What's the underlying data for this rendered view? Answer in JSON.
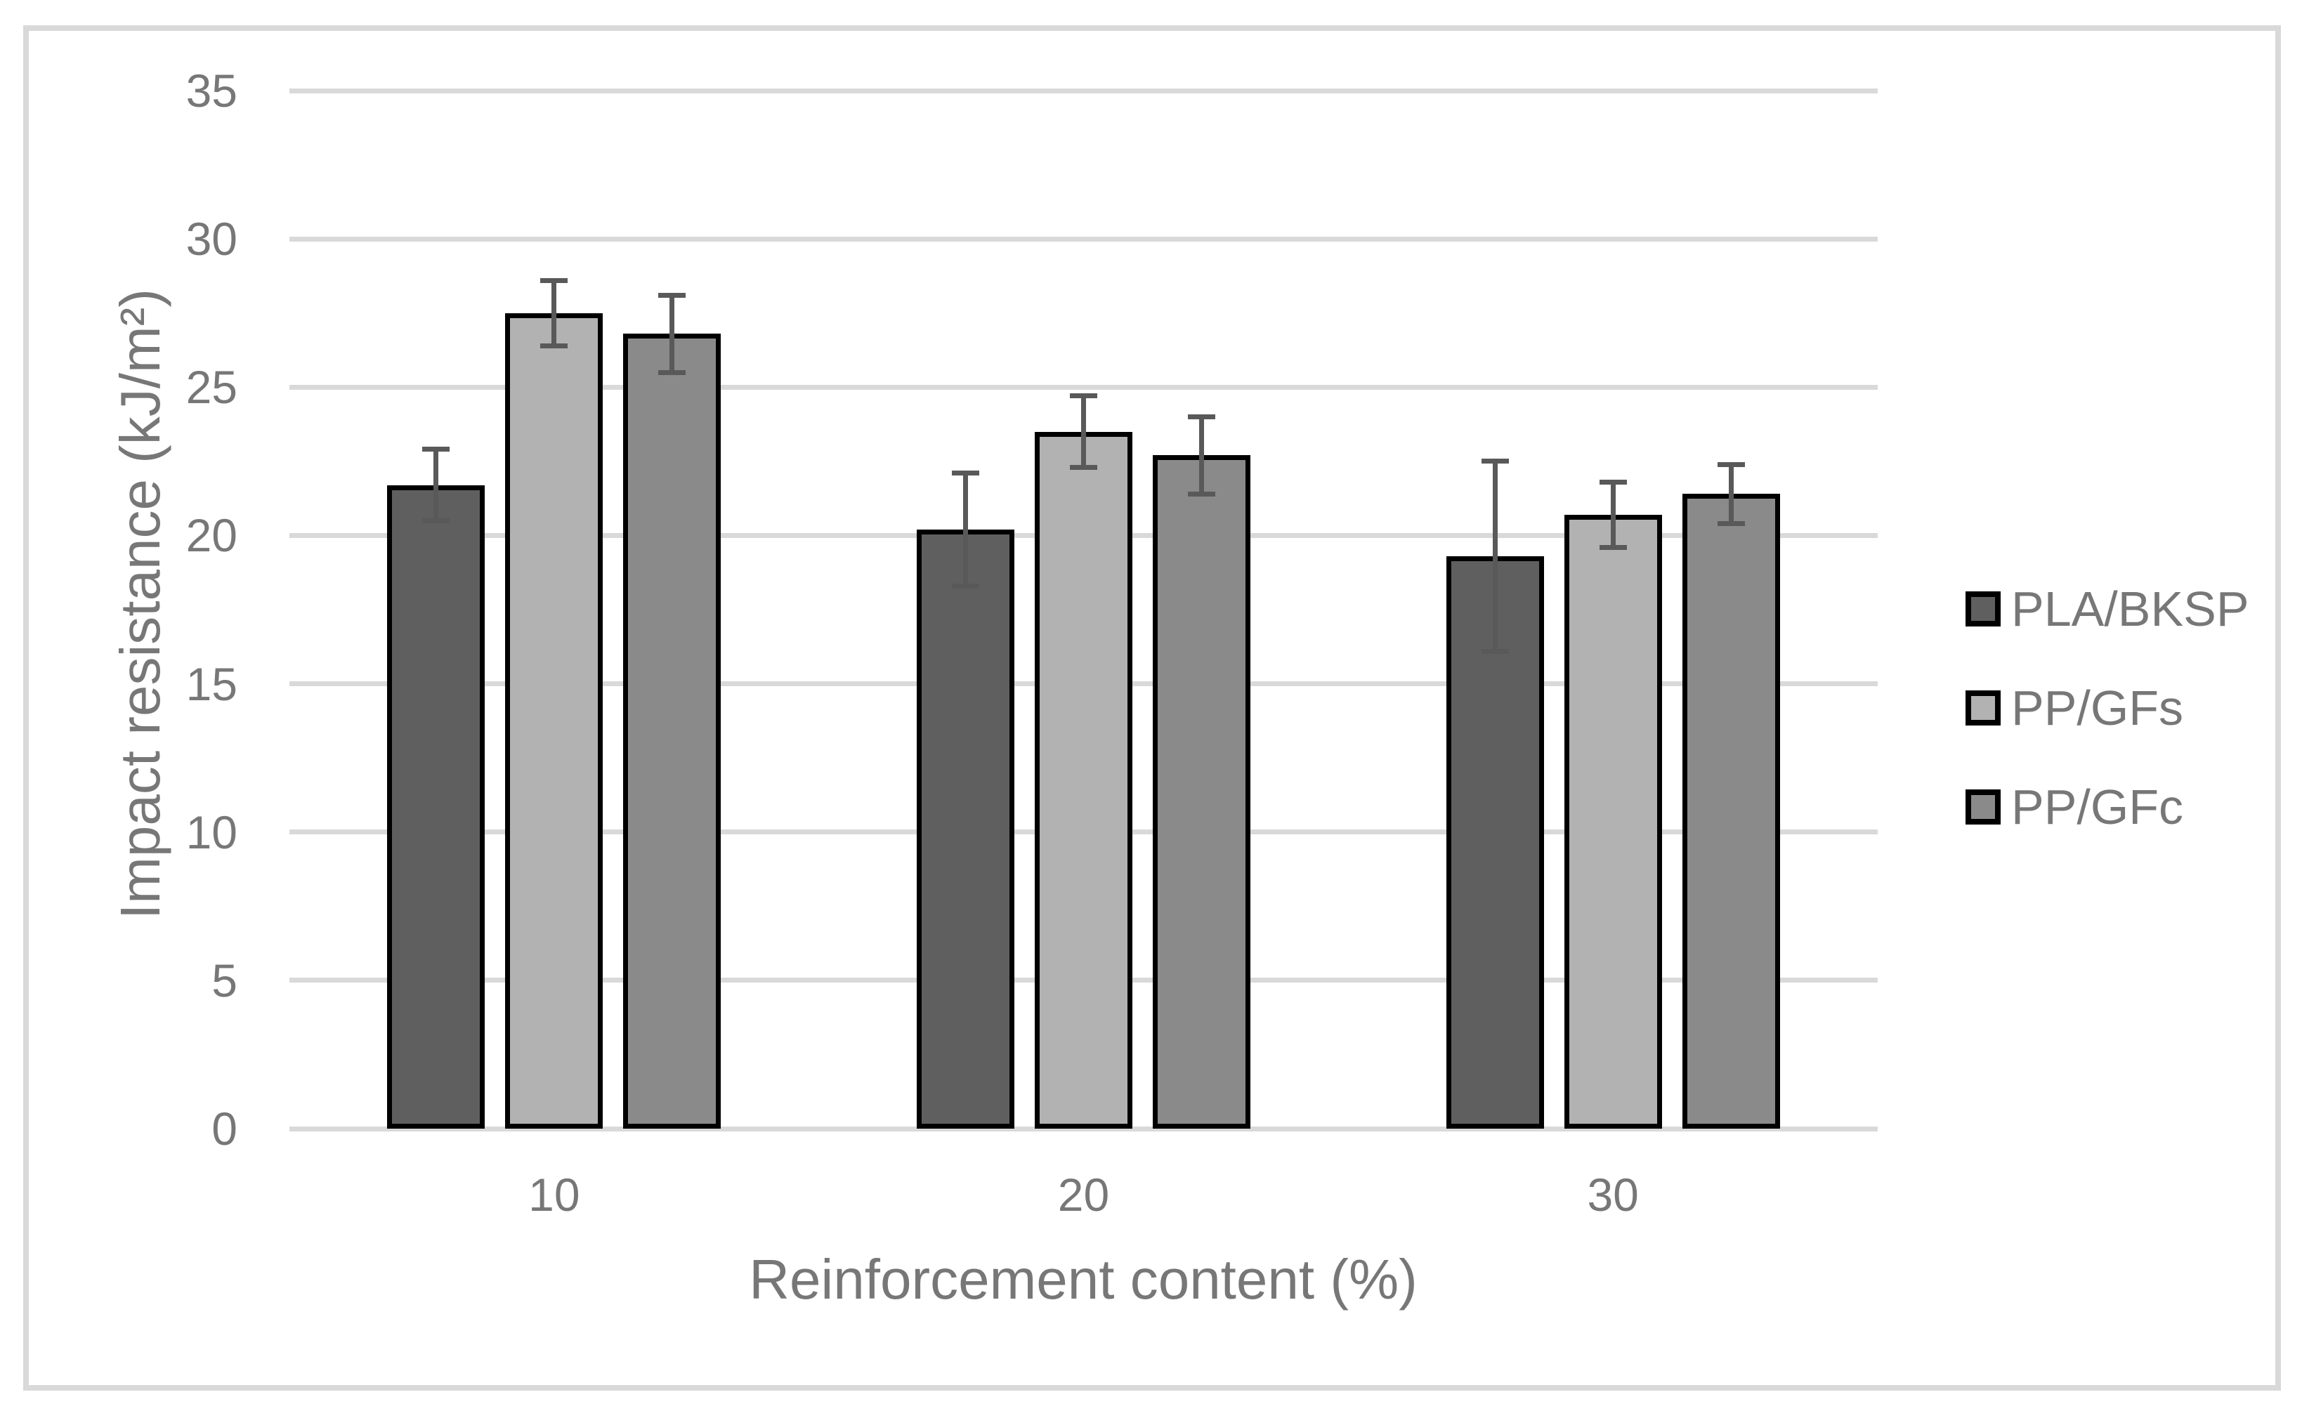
{
  "chart_data": {
    "type": "bar",
    "title": "",
    "xlabel": "Reinforcement content (%)",
    "ylabel": "Impact resistance (kJ/m²)",
    "categories": [
      "10",
      "20",
      "30"
    ],
    "series": [
      {
        "name": "PLA/BKSP",
        "color": "#5f5f5f",
        "values": [
          21.7,
          20.2,
          19.3
        ],
        "errors": [
          1.2,
          1.9,
          3.2
        ]
      },
      {
        "name": "PP/GFs",
        "color": "#b2b2b2",
        "values": [
          27.5,
          23.5,
          20.7
        ],
        "errors": [
          1.1,
          1.2,
          1.1
        ]
      },
      {
        "name": "PP/GFc",
        "color": "#8a8a8a",
        "values": [
          26.8,
          22.7,
          21.4
        ],
        "errors": [
          1.3,
          1.3,
          1.0
        ]
      }
    ],
    "ylim": [
      0,
      35
    ],
    "ytick_step": 5,
    "yticks": [
      "0",
      "5",
      "10",
      "15",
      "20",
      "25",
      "30",
      "35"
    ],
    "grid": true,
    "legend_position": "right",
    "colors": {
      "gridline": "#d9d9d9",
      "bar_border": "#000000",
      "error_bar": "#595959",
      "text": "#777777",
      "figure_border": "#d9d9d9",
      "background": "#ffffff"
    }
  }
}
